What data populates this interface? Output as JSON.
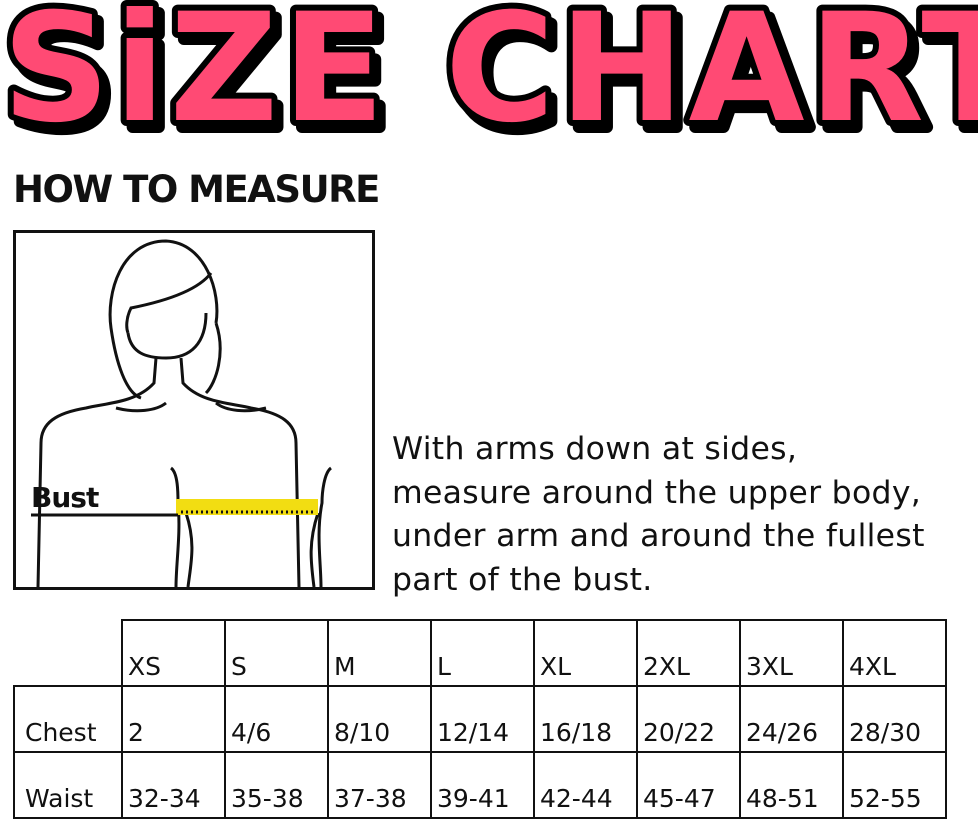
{
  "title": "SiZE CHART",
  "title_color": "#ff4a74",
  "how_to_measure": "HOW TO MEASURE",
  "figure": {
    "label": "Bust",
    "tape_color": "#f2dd12"
  },
  "instructions": [
    "With arms down at sides,",
    "measure around the upper body,",
    "under arm and around the fullest",
    "part of the bust."
  ],
  "table": {
    "sizes": [
      "XS",
      "S",
      "M",
      "L",
      "XL",
      "2XL",
      "3XL",
      "4XL"
    ],
    "rows": [
      {
        "label": "Chest",
        "values": [
          "2",
          "4/6",
          "8/10",
          "12/14",
          "16/18",
          "20/22",
          "24/26",
          "28/30"
        ]
      },
      {
        "label": "Waist",
        "values": [
          "32-34",
          "35-38",
          "37-38",
          "39-41",
          "42-44",
          "45-47",
          "48-51",
          "52-55"
        ]
      }
    ]
  }
}
